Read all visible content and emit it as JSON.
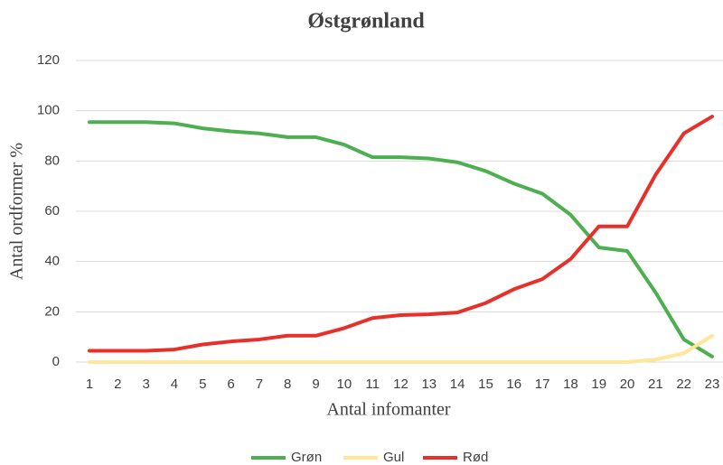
{
  "chart_data": {
    "type": "line",
    "title": "Østgrønland",
    "xlabel": "Antal infomanter",
    "ylabel": "Antal ordformer %",
    "categories": [
      "1",
      "2",
      "3",
      "4",
      "5",
      "6",
      "7",
      "8",
      "9",
      "10",
      "11",
      "12",
      "13",
      "14",
      "15",
      "16",
      "17",
      "18",
      "19",
      "20",
      "21",
      "22",
      "23"
    ],
    "series": [
      {
        "name": "Grøn",
        "color": "#4caf50",
        "values": [
          95.5,
          95.5,
          95.5,
          95,
          93,
          91.8,
          91,
          89.5,
          89.5,
          86.5,
          81.5,
          81.5,
          81,
          79.5,
          76,
          71,
          67,
          58.6,
          45.6,
          44.2,
          27.7,
          9,
          2.2
        ]
      },
      {
        "name": "Gul",
        "color": "#ffe699",
        "values": [
          0,
          0,
          0,
          0,
          0,
          0,
          0,
          0,
          0,
          0,
          0,
          0,
          0,
          0,
          0,
          0,
          0,
          0,
          0,
          0,
          1,
          3.5,
          10.5
        ]
      },
      {
        "name": "Rød",
        "color": "#e8302a",
        "values": [
          4.5,
          4.5,
          4.5,
          5,
          7,
          8.2,
          9,
          10.5,
          10.5,
          13.5,
          17.5,
          18.7,
          19,
          19.7,
          23.5,
          29,
          33,
          41,
          54,
          54,
          74.5,
          91,
          97.7
        ]
      }
    ],
    "ylim": [
      0,
      120
    ],
    "yticks": [
      0,
      20,
      40,
      60,
      80,
      100,
      120
    ],
    "grid": true,
    "legend": "bottom"
  }
}
